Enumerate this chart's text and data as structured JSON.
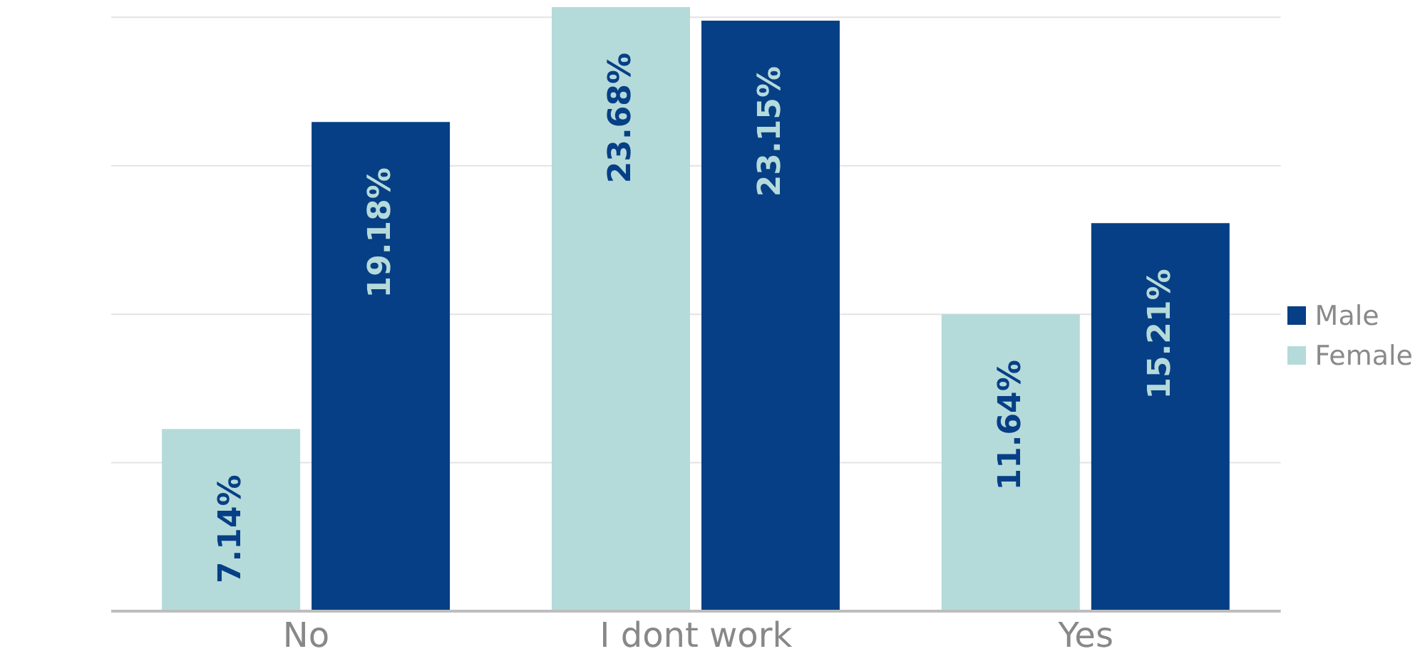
{
  "chart_data": {
    "type": "bar",
    "categories": [
      "No",
      "I dont work",
      "Yes"
    ],
    "series": [
      {
        "name": "Female",
        "color": "#b5dada",
        "values": [
          7.14,
          23.68,
          11.64
        ],
        "value_labels": [
          "7.14%",
          "23.68%",
          "11.64%"
        ]
      },
      {
        "name": "Male",
        "color": "#063f85",
        "values": [
          19.18,
          23.15,
          15.21
        ],
        "value_labels": [
          "19.18%",
          "23.15%",
          "15.21%"
        ]
      }
    ],
    "yticks": [
      {
        "value": 0,
        "label": null
      },
      {
        "value": 5.82,
        "label": null
      },
      {
        "value": 11.64,
        "label": null
      },
      {
        "value": 17.46,
        "label": null
      },
      {
        "value": 23.28,
        "label": null
      }
    ],
    "tick_labels": "x",
    "grid": "y",
    "legend": "right"
  }
}
